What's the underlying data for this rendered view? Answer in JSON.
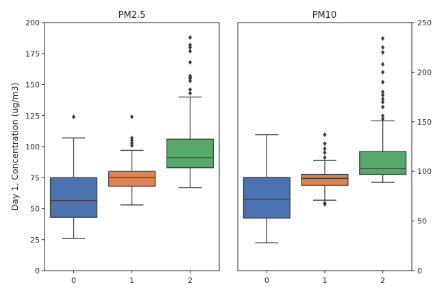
{
  "chart_data": [
    {
      "type": "box",
      "title": "PM2.5",
      "ylabel": "Day 1, Concentration (ug/m3)",
      "xlabel": "",
      "ylim": [
        0,
        200
      ],
      "yticks": [
        0,
        25,
        50,
        75,
        100,
        125,
        150,
        175,
        200
      ],
      "y_axis_side": "left",
      "categories": [
        "0",
        "1",
        "2"
      ],
      "colors": [
        "#4c72b0",
        "#dd8452",
        "#55a868"
      ],
      "boxes": [
        {
          "category": "0",
          "whislo": 26,
          "q1": 43,
          "med": 56.5,
          "q3": 75,
          "whishi": 107,
          "fliers": [
            124
          ]
        },
        {
          "category": "1",
          "whislo": 53,
          "q1": 68,
          "med": 75,
          "q3": 80,
          "whishi": 97,
          "fliers": [
            101,
            103,
            105,
            107,
            124
          ]
        },
        {
          "category": "2",
          "whislo": 67,
          "q1": 83,
          "med": 91,
          "q3": 106,
          "whishi": 140,
          "fliers": [
            143,
            146,
            153,
            155,
            156,
            157,
            168,
            177,
            180,
            182,
            188
          ]
        }
      ]
    },
    {
      "type": "box",
      "title": "PM10",
      "ylabel": "",
      "xlabel": "",
      "ylim": [
        0,
        250
      ],
      "yticks": [
        0,
        50,
        100,
        150,
        200,
        250
      ],
      "y_axis_side": "right",
      "categories": [
        "0",
        "1",
        "2"
      ],
      "colors": [
        "#4c72b0",
        "#dd8452",
        "#55a868"
      ],
      "boxes": [
        {
          "category": "0",
          "whislo": 28,
          "q1": 53,
          "med": 72,
          "q3": 94,
          "whishi": 137,
          "fliers": []
        },
        {
          "category": "1",
          "whislo": 71,
          "q1": 86,
          "med": 93,
          "q3": 97,
          "whishi": 111,
          "fliers": [
            67,
            68,
            114,
            119,
            123,
            128,
            137
          ]
        },
        {
          "category": "2",
          "whislo": 89,
          "q1": 97,
          "med": 103,
          "q3": 120,
          "whishi": 151,
          "fliers": [
            153,
            156,
            165,
            170,
            173,
            177,
            180,
            190,
            200,
            208,
            220,
            225,
            234
          ]
        }
      ]
    }
  ]
}
